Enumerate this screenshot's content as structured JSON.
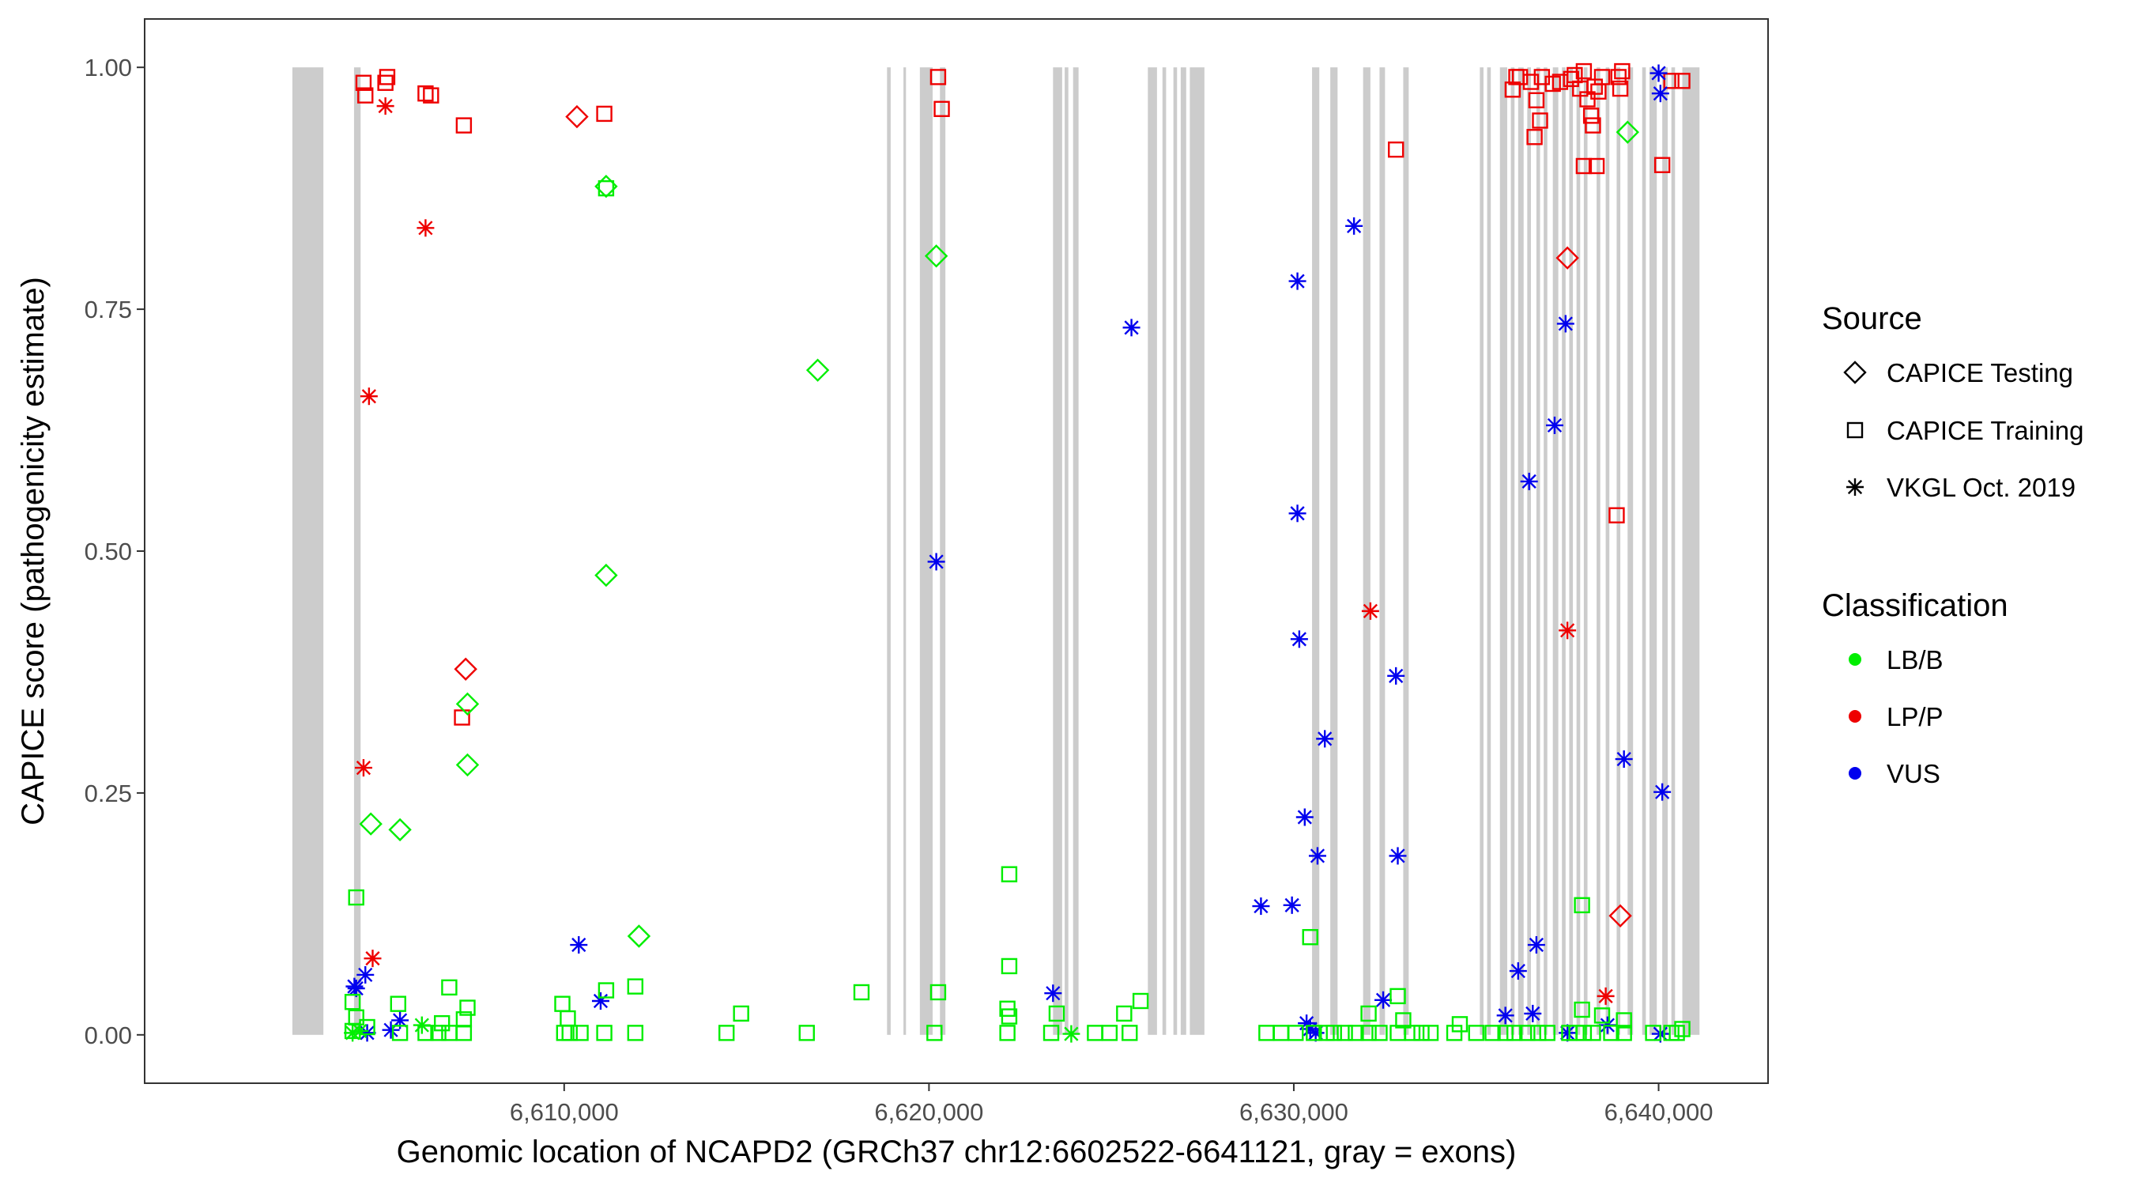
{
  "chart_data": {
    "type": "scatter",
    "title": "",
    "xlabel": "Genomic location of NCAPD2 (GRCh37 chr12:6602522-6641121, gray = exons)",
    "ylabel": "CAPICE score (pathogenicity estimate)",
    "xlim": [
      6598500,
      6643000
    ],
    "ylim": [
      -0.05,
      1.05
    ],
    "x_ticks": [
      6610000,
      6620000,
      6630000,
      6640000
    ],
    "x_tick_labels": [
      "6,610,000",
      "6,620,000",
      "6,630,000",
      "6,640,000"
    ],
    "y_ticks": [
      0,
      0.25,
      0.5,
      0.75,
      1
    ],
    "y_tick_labels": [
      "0.00",
      "0.25",
      "0.50",
      "0.75",
      "1.00"
    ],
    "grid": false,
    "exons": [
      [
        6602550,
        6603400
      ],
      [
        6604240,
        6604420
      ],
      [
        6618850,
        6618950
      ],
      [
        6619300,
        6619370
      ],
      [
        6619750,
        6620100
      ],
      [
        6620300,
        6620450
      ],
      [
        6623400,
        6623650
      ],
      [
        6623720,
        6623820
      ],
      [
        6623950,
        6624100
      ],
      [
        6626000,
        6626250
      ],
      [
        6626400,
        6626500
      ],
      [
        6626700,
        6626800
      ],
      [
        6626900,
        6627050
      ],
      [
        6627150,
        6627550
      ],
      [
        6630500,
        6630700
      ],
      [
        6631000,
        6631200
      ],
      [
        6631900,
        6632100
      ],
      [
        6632350,
        6632500
      ],
      [
        6633000,
        6633150
      ],
      [
        6635100,
        6635200
      ],
      [
        6635300,
        6635400
      ],
      [
        6635650,
        6635850
      ],
      [
        6635950,
        6636050
      ],
      [
        6636150,
        6636300
      ],
      [
        6636400,
        6636500
      ],
      [
        6636650,
        6636750
      ],
      [
        6636850,
        6636950
      ],
      [
        6637100,
        6637250
      ],
      [
        6637350,
        6637450
      ],
      [
        6637550,
        6637650
      ],
      [
        6637750,
        6637850
      ],
      [
        6637950,
        6638050
      ],
      [
        6638300,
        6638400
      ],
      [
        6638550,
        6638650
      ],
      [
        6638850,
        6638950
      ],
      [
        6639150,
        6639300
      ],
      [
        6639550,
        6639650
      ],
      [
        6639750,
        6639950
      ],
      [
        6640100,
        6640250
      ],
      [
        6640350,
        6640450
      ],
      [
        6640650,
        6641121
      ]
    ],
    "legend": {
      "position": "right",
      "source_title": "Source",
      "source_items": [
        {
          "label": "CAPICE Testing",
          "shape": "diamond"
        },
        {
          "label": "CAPICE Training",
          "shape": "square"
        },
        {
          "label": "VKGL Oct. 2019",
          "shape": "asterisk"
        }
      ],
      "class_title": "Classification",
      "class_items": [
        {
          "label": "LB/B",
          "color": "#00ee00"
        },
        {
          "label": "LP/P",
          "color": "#ee0000"
        },
        {
          "label": "VUS",
          "color": "#0000ee"
        }
      ]
    },
    "series": [
      {
        "name": "LP/P CAPICE Training",
        "class": "LP/P",
        "shape": "square",
        "color": "#ee0000",
        "points": [
          [
            6604500,
            0.984
          ],
          [
            6604550,
            0.971
          ],
          [
            6605100,
            0.984
          ],
          [
            6605150,
            0.99
          ],
          [
            6606200,
            0.973
          ],
          [
            6606350,
            0.971
          ],
          [
            6607250,
            0.94
          ],
          [
            6611100,
            0.952
          ],
          [
            6620250,
            0.99
          ],
          [
            6620350,
            0.957
          ],
          [
            6632800,
            0.915
          ],
          [
            6636000,
            0.977
          ],
          [
            6636100,
            0.99
          ],
          [
            6636200,
            0.99
          ],
          [
            6636500,
            0.985
          ],
          [
            6636650,
            0.966
          ],
          [
            6636800,
            0.99
          ],
          [
            6636600,
            0.928
          ],
          [
            6636750,
            0.945
          ],
          [
            6637100,
            0.983
          ],
          [
            6637300,
            0.985
          ],
          [
            6637600,
            0.988
          ],
          [
            6637700,
            0.992
          ],
          [
            6637850,
            0.978
          ],
          [
            6637950,
            0.996
          ],
          [
            6638050,
            0.967
          ],
          [
            6638150,
            0.95
          ],
          [
            6638200,
            0.94
          ],
          [
            6638250,
            0.98
          ],
          [
            6638350,
            0.975
          ],
          [
            6638450,
            0.99
          ],
          [
            6638900,
            0.99
          ],
          [
            6638950,
            0.978
          ],
          [
            6639000,
            0.996
          ],
          [
            6637950,
            0.898
          ],
          [
            6638300,
            0.898
          ],
          [
            6638850,
            0.537
          ],
          [
            6640100,
            0.899
          ],
          [
            6640350,
            0.986
          ],
          [
            6640650,
            0.986
          ],
          [
            6607200,
            0.328
          ]
        ]
      },
      {
        "name": "LP/P CAPICE Testing",
        "class": "LP/P",
        "shape": "diamond",
        "color": "#ee0000",
        "points": [
          [
            6610350,
            0.949
          ],
          [
            6637500,
            0.803
          ],
          [
            6607300,
            0.378
          ],
          [
            6638950,
            0.123
          ]
        ]
      },
      {
        "name": "LP/P VKGL",
        "class": "LP/P",
        "shape": "asterisk",
        "color": "#ee0000",
        "points": [
          [
            6605100,
            0.96
          ],
          [
            6606200,
            0.834
          ],
          [
            6604650,
            0.66
          ],
          [
            6632100,
            0.438
          ],
          [
            6637500,
            0.418
          ],
          [
            6604500,
            0.276
          ],
          [
            6604750,
            0.079
          ],
          [
            6638550,
            0.04
          ]
        ]
      },
      {
        "name": "VUS VKGL",
        "class": "VUS",
        "shape": "asterisk",
        "color": "#0000ee",
        "points": [
          [
            6640000,
            0.994
          ],
          [
            6640050,
            0.973
          ],
          [
            6631650,
            0.836
          ],
          [
            6630100,
            0.779
          ],
          [
            6625550,
            0.731
          ],
          [
            6637450,
            0.735
          ],
          [
            6637150,
            0.63
          ],
          [
            6636450,
            0.572
          ],
          [
            6630100,
            0.539
          ],
          [
            6620200,
            0.489
          ],
          [
            6630150,
            0.409
          ],
          [
            6632800,
            0.371
          ],
          [
            6630850,
            0.306
          ],
          [
            6639050,
            0.285
          ],
          [
            6630300,
            0.225
          ],
          [
            6640100,
            0.251
          ],
          [
            6630650,
            0.185
          ],
          [
            6632850,
            0.185
          ],
          [
            6629100,
            0.133
          ],
          [
            6629950,
            0.134
          ],
          [
            6636650,
            0.093
          ],
          [
            6610400,
            0.093
          ],
          [
            6636150,
            0.066
          ],
          [
            6604300,
            0.048
          ],
          [
            6604550,
            0.062
          ],
          [
            6623400,
            0.043
          ],
          [
            6611000,
            0.035
          ],
          [
            6632450,
            0.036
          ],
          [
            6604250,
            0.05
          ],
          [
            6635800,
            0.02
          ],
          [
            6636550,
            0.022
          ],
          [
            6605500,
            0.015
          ],
          [
            6630350,
            0.012
          ],
          [
            6605250,
            0.005
          ],
          [
            6604600,
            0.002
          ],
          [
            6630450,
            0.006
          ],
          [
            6630600,
            0.002
          ],
          [
            6638600,
            0.01
          ],
          [
            6640050,
            0.001
          ],
          [
            6637500,
            0.002
          ]
        ]
      },
      {
        "name": "LB/B CAPICE Testing",
        "class": "LB/B",
        "shape": "diamond",
        "color": "#00ee00",
        "points": [
          [
            6639150,
            0.933
          ],
          [
            6611150,
            0.877
          ],
          [
            6620200,
            0.805
          ],
          [
            6616950,
            0.687
          ],
          [
            6611150,
            0.475
          ],
          [
            6607350,
            0.342
          ],
          [
            6607350,
            0.279
          ],
          [
            6604700,
            0.218
          ],
          [
            6605500,
            0.212
          ],
          [
            6612050,
            0.102
          ]
        ]
      },
      {
        "name": "LB/B CAPICE Training",
        "class": "LB/B",
        "shape": "square",
        "color": "#00ee00",
        "points": [
          [
            6611150,
            0.875
          ],
          [
            6604300,
            0.142
          ],
          [
            6637900,
            0.134
          ],
          [
            6622200,
            0.166
          ],
          [
            6630450,
            0.101
          ],
          [
            6622200,
            0.071
          ],
          [
            6606850,
            0.049
          ],
          [
            6611950,
            0.05
          ],
          [
            6618150,
            0.044
          ],
          [
            6620250,
            0.044
          ],
          [
            6611150,
            0.046
          ],
          [
            6604200,
            0.034
          ],
          [
            6605450,
            0.032
          ],
          [
            6607350,
            0.028
          ],
          [
            6609950,
            0.032
          ],
          [
            6614850,
            0.022
          ],
          [
            6622150,
            0.027
          ],
          [
            6625800,
            0.035
          ],
          [
            6625350,
            0.022
          ],
          [
            6632850,
            0.04
          ],
          [
            6637900,
            0.026
          ],
          [
            6638450,
            0.02
          ],
          [
            6623500,
            0.022
          ],
          [
            6610100,
            0.017
          ],
          [
            6607250,
            0.016
          ],
          [
            6606650,
            0.012
          ],
          [
            6632050,
            0.022
          ],
          [
            6634550,
            0.011
          ],
          [
            6604300,
            0.018
          ],
          [
            6604600,
            0.008
          ],
          [
            6622200,
            0.019
          ],
          [
            6633000,
            0.015
          ],
          [
            6639050,
            0.015
          ],
          [
            6640650,
            0.006
          ],
          [
            6604200,
            0.004
          ],
          [
            6605500,
            0.002
          ],
          [
            6606200,
            0.002
          ],
          [
            6606550,
            0.002
          ],
          [
            6606850,
            0.002
          ],
          [
            6607250,
            0.002
          ],
          [
            6610000,
            0.002
          ],
          [
            6610150,
            0.002
          ],
          [
            6610450,
            0.002
          ],
          [
            6611100,
            0.002
          ],
          [
            6611950,
            0.002
          ],
          [
            6614450,
            0.002
          ],
          [
            6616650,
            0.002
          ],
          [
            6620150,
            0.002
          ],
          [
            6622150,
            0.002
          ],
          [
            6623350,
            0.002
          ],
          [
            6624550,
            0.002
          ],
          [
            6624950,
            0.002
          ],
          [
            6625500,
            0.002
          ],
          [
            6629250,
            0.002
          ],
          [
            6629650,
            0.002
          ],
          [
            6630050,
            0.002
          ],
          [
            6630550,
            0.002
          ],
          [
            6630900,
            0.002
          ],
          [
            6631100,
            0.002
          ],
          [
            6631400,
            0.002
          ],
          [
            6631700,
            0.002
          ],
          [
            6632050,
            0.002
          ],
          [
            6632350,
            0.002
          ],
          [
            6632850,
            0.002
          ],
          [
            6633250,
            0.002
          ],
          [
            6633500,
            0.002
          ],
          [
            6633750,
            0.002
          ],
          [
            6634400,
            0.002
          ],
          [
            6635000,
            0.002
          ],
          [
            6635450,
            0.002
          ],
          [
            6635800,
            0.002
          ],
          [
            6636050,
            0.002
          ],
          [
            6636400,
            0.002
          ],
          [
            6636700,
            0.002
          ],
          [
            6636950,
            0.002
          ],
          [
            6637550,
            0.002
          ],
          [
            6637750,
            0.002
          ],
          [
            6637950,
            0.002
          ],
          [
            6638200,
            0.002
          ],
          [
            6638700,
            0.002
          ],
          [
            6639050,
            0.002
          ],
          [
            6639850,
            0.002
          ],
          [
            6640350,
            0.002
          ],
          [
            6640500,
            0.002
          ]
        ]
      },
      {
        "name": "LB/B VKGL",
        "class": "LB/B",
        "shape": "asterisk",
        "color": "#00ee00",
        "points": [
          [
            6604200,
            0.002
          ],
          [
            6606100,
            0.01
          ],
          [
            6623900,
            0.001
          ],
          [
            6604400,
            0.004
          ]
        ]
      }
    ]
  }
}
